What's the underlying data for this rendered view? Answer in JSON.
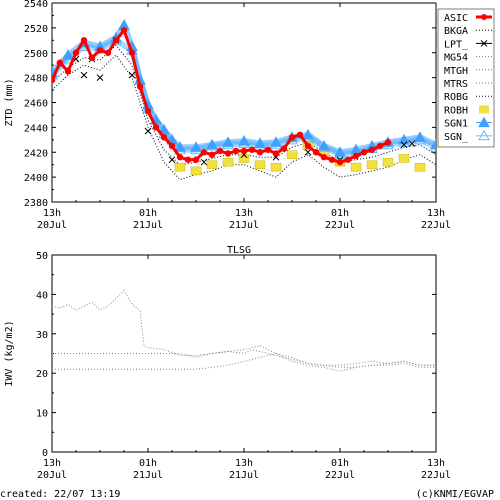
{
  "chart_data": [
    {
      "type": "line",
      "ylabel": "ZTD (mm)",
      "ylim": [
        2380,
        2540
      ],
      "yticks": [
        2380,
        2400,
        2420,
        2440,
        2460,
        2480,
        2500,
        2520,
        2540
      ],
      "xlim": [
        0,
        48
      ],
      "xticks": [
        {
          "hour": 0,
          "top": "13h",
          "bottom": "20Jul"
        },
        {
          "hour": 12,
          "top": "01h",
          "bottom": "21Jul"
        },
        {
          "hour": 24,
          "top": "13h",
          "bottom": "21Jul"
        },
        {
          "hour": 36,
          "top": "01h",
          "bottom": "22Jul"
        },
        {
          "hour": 48,
          "top": "13h",
          "bottom": "22Jul"
        }
      ],
      "grid": false,
      "legend_position": "right",
      "legend": [
        "ASIC",
        "BKGA",
        "LPT_",
        "MG54",
        "MTGH",
        "MTRS",
        "ROBG",
        "ROBH",
        "SGN1",
        "SGN_"
      ],
      "series": [
        {
          "name": "ASIC",
          "color": "#ff0000",
          "style": "thick-dots",
          "x": [
            0,
            1,
            2,
            3,
            4,
            5,
            6,
            7,
            8,
            9,
            10,
            11,
            12,
            13,
            14,
            15,
            16,
            17,
            18,
            19,
            20,
            21,
            22,
            23,
            24,
            25,
            26,
            27,
            28,
            29,
            30,
            31,
            32,
            33,
            34,
            35,
            36,
            37,
            38,
            39,
            40,
            41,
            42
          ],
          "y": [
            2478,
            2492,
            2485,
            2500,
            2510,
            2496,
            2502,
            2500,
            2510,
            2518,
            2500,
            2473,
            2453,
            2440,
            2432,
            2425,
            2416,
            2414,
            2414,
            2420,
            2418,
            2421,
            2419,
            2421,
            2421,
            2422,
            2420,
            2422,
            2419,
            2423,
            2432,
            2434,
            2425,
            2420,
            2416,
            2414,
            2412,
            2414,
            2417,
            2420,
            2422,
            2425,
            2428
          ]
        },
        {
          "name": "SGN1",
          "color": "#40a0ff",
          "style": "triangles",
          "x": [
            0,
            2,
            4,
            6,
            8,
            9,
            10,
            11,
            12,
            13,
            14,
            15,
            16,
            18,
            20,
            22,
            24,
            26,
            28,
            30,
            32,
            34,
            36,
            38,
            40,
            42,
            44,
            46,
            48
          ],
          "y": [
            2484,
            2498,
            2508,
            2505,
            2512,
            2522,
            2505,
            2478,
            2458,
            2446,
            2438,
            2430,
            2424,
            2424,
            2426,
            2428,
            2429,
            2427,
            2428,
            2432,
            2434,
            2425,
            2420,
            2422,
            2425,
            2428,
            2430,
            2432,
            2426
          ]
        },
        {
          "name": "SGN_",
          "color": "#60c0ff",
          "style": "triangles-open",
          "x": [
            0,
            2,
            4,
            6,
            8,
            10,
            12,
            14,
            16,
            18,
            20,
            22,
            24,
            26,
            28,
            30,
            32,
            34,
            36,
            38,
            40,
            42,
            44,
            46,
            48
          ],
          "y": [
            2482,
            2495,
            2505,
            2503,
            2510,
            2502,
            2455,
            2435,
            2422,
            2422,
            2425,
            2426,
            2427,
            2425,
            2426,
            2430,
            2432,
            2424,
            2418,
            2420,
            2423,
            2426,
            2428,
            2430,
            2424
          ]
        },
        {
          "name": "ROBH",
          "color": "#f0e040",
          "style": "squares",
          "x": [
            16,
            18,
            20,
            22,
            24,
            26,
            28,
            30,
            32,
            34,
            36,
            38,
            40,
            42,
            44,
            46
          ],
          "y": [
            2408,
            2405,
            2410,
            2412,
            2415,
            2410,
            2408,
            2418,
            2425,
            2420,
            2412,
            2408,
            2410,
            2412,
            2415,
            2408
          ]
        },
        {
          "name": "LPT_",
          "color": "#000000",
          "style": "crosses",
          "x": [
            0,
            3,
            4,
            5,
            6,
            8,
            10,
            12,
            15,
            19,
            24,
            28,
            32,
            36,
            44,
            45
          ],
          "y": [
            2480,
            2495,
            2482,
            2495,
            2480,
            2510,
            2482,
            2437,
            2414,
            2412,
            2418,
            2416,
            2420,
            2414,
            2426,
            2427
          ]
        },
        {
          "name": "BKGA",
          "color": "#000000",
          "style": "dotted",
          "x": [
            0,
            2,
            4,
            6,
            8,
            10,
            12,
            14,
            16,
            18,
            20,
            22,
            24,
            26,
            28,
            30,
            32,
            34,
            36,
            38,
            40,
            42,
            44,
            46,
            48
          ],
          "y": [
            2476,
            2488,
            2496,
            2494,
            2506,
            2490,
            2446,
            2422,
            2410,
            2412,
            2415,
            2418,
            2418,
            2416,
            2416,
            2424,
            2428,
            2420,
            2412,
            2414,
            2416,
            2420,
            2424,
            2426,
            2418
          ]
        },
        {
          "name": "ROBG",
          "color": "#000000",
          "style": "dotted",
          "x": [
            0,
            2,
            4,
            6,
            8,
            10,
            12,
            14,
            16,
            18,
            20,
            22,
            24,
            26,
            28,
            30,
            32,
            34,
            36,
            38,
            40,
            42,
            44,
            46,
            48
          ],
          "y": [
            2470,
            2482,
            2490,
            2486,
            2498,
            2480,
            2440,
            2412,
            2398,
            2402,
            2405,
            2410,
            2410,
            2405,
            2400,
            2412,
            2418,
            2408,
            2400,
            2402,
            2405,
            2408,
            2414,
            2418,
            2410
          ]
        }
      ]
    },
    {
      "type": "line",
      "title": "TLSG",
      "ylabel": "IWV (kg/m2)",
      "ylim": [
        0,
        50
      ],
      "yticks": [
        0,
        10,
        20,
        30,
        40,
        50
      ],
      "xlim": [
        0,
        48
      ],
      "xticks": [
        {
          "hour": 0,
          "top": "13h",
          "bottom": "20Jul"
        },
        {
          "hour": 12,
          "top": "01h",
          "bottom": "21Jul"
        },
        {
          "hour": 24,
          "top": "13h",
          "bottom": "21Jul"
        },
        {
          "hour": 36,
          "top": "01h",
          "bottom": "22Jul"
        },
        {
          "hour": 48,
          "top": "13h",
          "bottom": "22Jul"
        }
      ],
      "grid": false,
      "series": [
        {
          "style": "dotted",
          "color": "#888888",
          "x": [
            0,
            1,
            2,
            3,
            4,
            5,
            6,
            7,
            8,
            9,
            10,
            11,
            11.5,
            12,
            14,
            16,
            18,
            20,
            22,
            24,
            25,
            26,
            28,
            30,
            32,
            34,
            36,
            38,
            40,
            42,
            44,
            46,
            48
          ],
          "y": [
            37,
            36.5,
            37.5,
            36,
            37,
            38,
            36,
            37,
            39,
            41,
            37.5,
            36,
            27,
            26.5,
            26,
            24.5,
            24.5,
            25,
            25.5,
            25,
            26,
            25.5,
            24.5,
            23.5,
            22.5,
            22,
            21.5,
            21.5,
            22,
            22.5,
            23,
            22,
            22
          ]
        },
        {
          "style": "dotted",
          "color": "#888888",
          "x": [
            0,
            4,
            8,
            12,
            14,
            16,
            18,
            20,
            22,
            24,
            26,
            28,
            30,
            32,
            34,
            36,
            38,
            40,
            42,
            44,
            46,
            48
          ],
          "y": [
            25,
            25,
            25,
            25,
            25,
            25,
            24,
            25,
            25.5,
            26,
            27,
            25,
            24,
            22.5,
            22,
            22,
            22.5,
            23,
            22.5,
            23,
            22,
            22
          ]
        },
        {
          "style": "dotted",
          "color": "#888888",
          "x": [
            0,
            4,
            8,
            12,
            14,
            16,
            18,
            20,
            22,
            24,
            26,
            28,
            30,
            32,
            34,
            36,
            38,
            40,
            42,
            44,
            46,
            48
          ],
          "y": [
            21,
            21,
            21,
            21,
            21,
            21,
            21,
            21.5,
            22,
            23,
            24,
            25,
            23,
            22,
            21.5,
            20.5,
            21.5,
            22,
            22,
            22.5,
            21.5,
            21.5
          ]
        }
      ]
    }
  ],
  "footer": {
    "created": "created: 22/07 13:19",
    "credit": "(c)KNMI/EGVAP"
  }
}
